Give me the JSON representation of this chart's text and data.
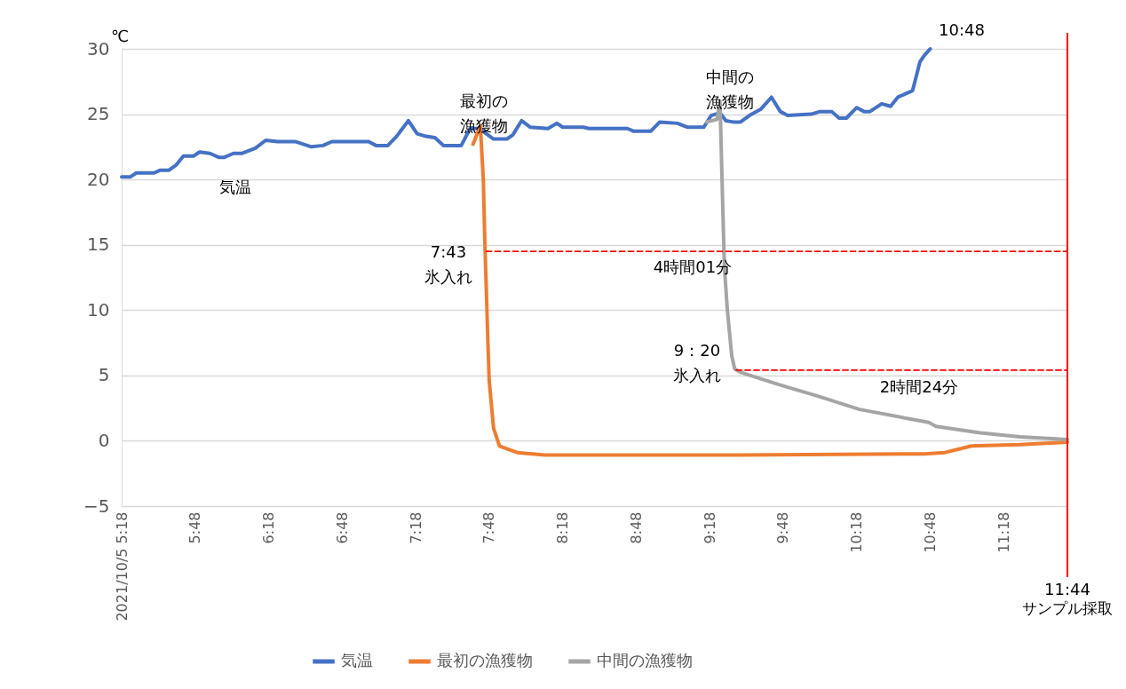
{
  "chart_data": {
    "type": "line",
    "ylabel": "℃",
    "xlim": [
      5.3,
      11.733
    ],
    "ylim": [
      -5,
      30
    ],
    "yticks": [
      -5,
      0,
      5,
      10,
      15,
      20,
      25,
      30
    ],
    "xticks": [
      {
        "value": 5.3,
        "label": "2021/10/5 5:18"
      },
      {
        "value": 5.8,
        "label": "5:48"
      },
      {
        "value": 6.3,
        "label": "6:18"
      },
      {
        "value": 6.8,
        "label": "6:48"
      },
      {
        "value": 7.3,
        "label": "7:18"
      },
      {
        "value": 7.8,
        "label": "7:48"
      },
      {
        "value": 8.3,
        "label": "8:18"
      },
      {
        "value": 8.8,
        "label": "8:48"
      },
      {
        "value": 9.3,
        "label": "9:18"
      },
      {
        "value": 9.8,
        "label": "9:48"
      },
      {
        "value": 10.3,
        "label": "10:18"
      },
      {
        "value": 10.8,
        "label": "10:48"
      },
      {
        "value": 11.3,
        "label": "11:18"
      }
    ],
    "grid": "y",
    "legend": "bottom",
    "series": [
      {
        "name": "気温",
        "color": "#4472c4",
        "x": [
          5.3,
          5.36,
          5.4,
          5.52,
          5.56,
          5.62,
          5.67,
          5.72,
          5.79,
          5.83,
          5.9,
          5.96,
          6.0,
          6.06,
          6.12,
          6.21,
          6.28,
          6.36,
          6.48,
          6.59,
          6.67,
          6.73,
          6.98,
          7.03,
          7.11,
          7.17,
          7.25,
          7.31,
          7.37,
          7.43,
          7.49,
          7.61,
          7.67,
          7.74,
          7.78,
          7.83,
          7.92,
          7.96,
          8.02,
          8.08,
          8.2,
          8.26,
          8.3,
          8.44,
          8.48,
          8.74,
          8.78,
          8.9,
          8.96,
          9.08,
          9.15,
          9.26,
          9.31,
          9.37,
          9.41,
          9.46,
          9.51,
          9.57,
          9.65,
          9.72,
          9.78,
          9.83,
          9.99,
          10.05,
          10.13,
          10.18,
          10.23,
          10.3,
          10.35,
          10.39,
          10.47,
          10.53,
          10.58,
          10.68,
          10.73,
          10.76,
          10.8
        ],
        "values": [
          20.2,
          20.2,
          20.5,
          20.5,
          20.7,
          20.7,
          21.1,
          21.8,
          21.8,
          22.1,
          22.0,
          21.7,
          21.7,
          22.0,
          22.0,
          22.4,
          23.0,
          22.9,
          22.9,
          22.5,
          22.6,
          22.9,
          22.9,
          22.6,
          22.6,
          23.3,
          24.5,
          23.5,
          23.3,
          23.2,
          22.6,
          22.6,
          23.9,
          23.9,
          23.5,
          23.1,
          23.1,
          23.4,
          24.5,
          24.0,
          23.9,
          24.3,
          24.0,
          24.0,
          23.9,
          23.9,
          23.7,
          23.7,
          24.4,
          24.3,
          24.0,
          24.0,
          24.9,
          25.1,
          24.5,
          24.4,
          24.4,
          24.9,
          25.4,
          26.3,
          25.2,
          24.9,
          25.0,
          25.2,
          25.2,
          24.7,
          24.7,
          25.5,
          25.2,
          25.2,
          25.8,
          25.6,
          26.3,
          26.8,
          29.0,
          29.5,
          30.0
        ]
      },
      {
        "name": "最初の漁獲物",
        "color": "#ed7d31",
        "x": [
          7.69,
          7.74,
          7.76,
          7.77,
          7.79,
          7.8,
          7.83,
          7.87,
          7.99,
          8.18,
          9.5,
          10.76,
          10.9,
          11.08,
          11.41,
          11.733
        ],
        "values": [
          22.7,
          24.1,
          20.0,
          15.4,
          8.0,
          4.6,
          0.95,
          -0.4,
          -0.9,
          -1.1,
          -1.1,
          -1.0,
          -0.9,
          -0.4,
          -0.3,
          -0.1
        ]
      },
      {
        "name": "中間の漁獲物",
        "color": "#a5a5a5",
        "x": [
          9.28,
          9.35,
          9.37,
          9.39,
          9.4,
          9.42,
          9.45,
          9.47,
          9.52,
          9.77,
          10.04,
          10.32,
          10.79,
          10.84,
          11.14,
          11.41,
          11.733
        ],
        "values": [
          24.4,
          24.6,
          26.0,
          17.4,
          13.3,
          10.0,
          6.5,
          5.5,
          5.2,
          4.3,
          3.4,
          2.4,
          1.4,
          1.1,
          0.6,
          0.3,
          0.1
        ]
      },
      {
        "color": "#ff0000",
        "line_style": "dashed",
        "x": [
          7.78,
          11.733
        ],
        "values": [
          14.5,
          14.5
        ]
      },
      {
        "color": "#ff0000",
        "line_style": "dashed",
        "x": [
          9.48,
          11.733
        ],
        "values": [
          5.4,
          5.4
        ]
      }
    ],
    "ref_lines": [
      {
        "axis": "x",
        "value": 11.733,
        "label": "サンプル採取",
        "color": "#ff0000"
      }
    ],
    "annotations": [
      "11:44",
      "10:48",
      "最初の漁獲物",
      "中間の漁獲物",
      "気温",
      "7:43氷入れ",
      "4時間01分",
      "9：20氷入れ",
      "2時間24分"
    ]
  }
}
